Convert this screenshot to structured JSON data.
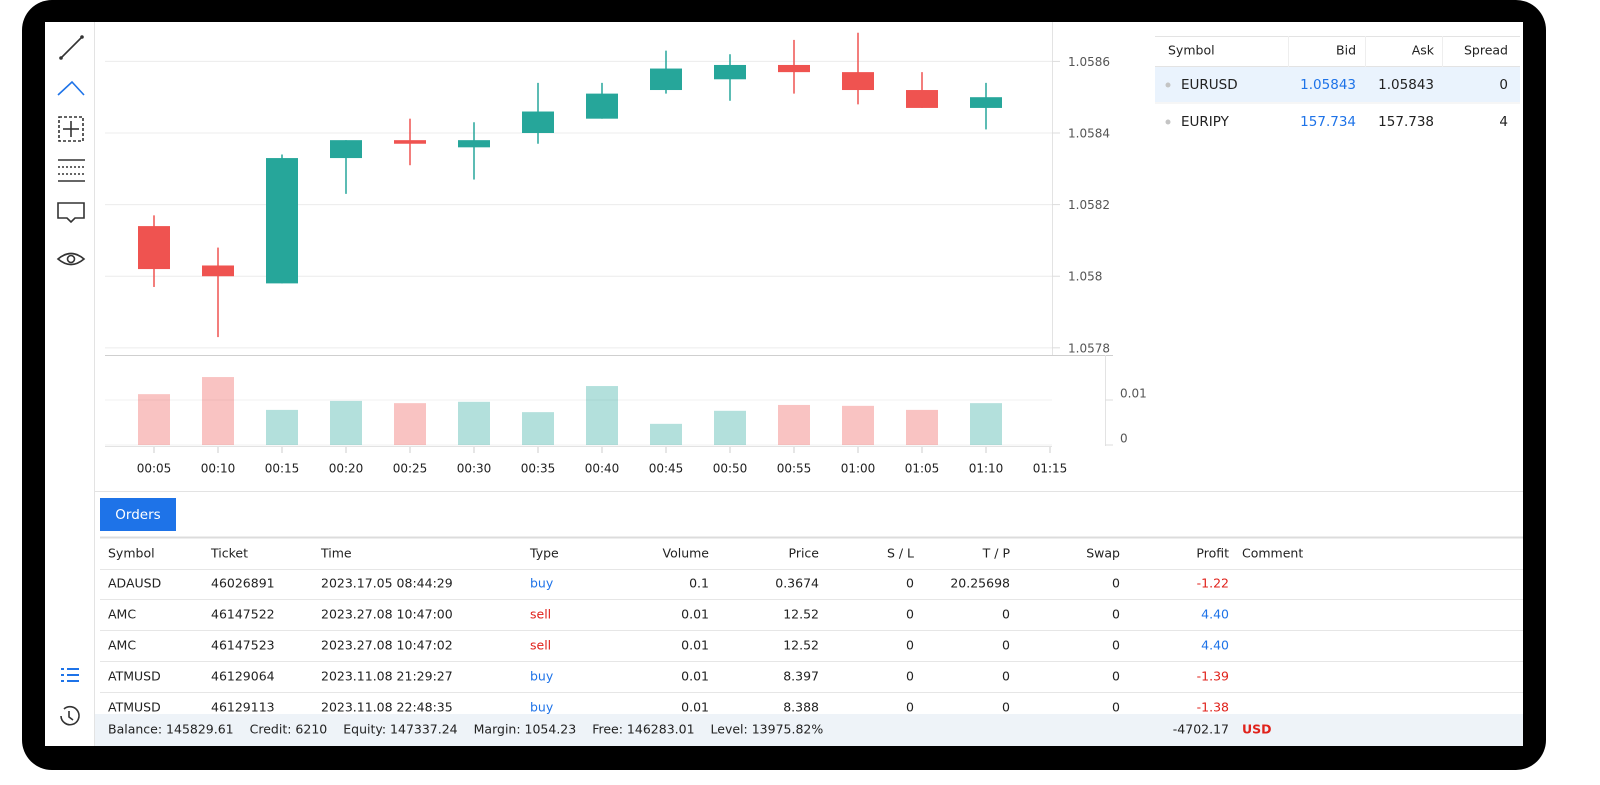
{
  "chart": {
    "type": "candlestick",
    "xticks": [
      "00:05",
      "00:10",
      "00:15",
      "00:20",
      "00:25",
      "00:30",
      "00:35",
      "00:40",
      "00:45",
      "00:50",
      "00:55",
      "01:00",
      "01:05",
      "01:10",
      "01:15"
    ],
    "open": [
      1.05814,
      1.05803,
      1.05798,
      1.05833,
      1.05838,
      1.05836,
      1.0584,
      1.05844,
      1.05852,
      1.05855,
      1.05859,
      1.05857,
      1.05852,
      1.05847
    ],
    "high": [
      1.05817,
      1.05808,
      1.05834,
      1.05838,
      1.05844,
      1.05843,
      1.05854,
      1.05854,
      1.05863,
      1.05862,
      1.05866,
      1.05868,
      1.05857,
      1.05854
    ],
    "low": [
      1.05797,
      1.05783,
      1.05798,
      1.05823,
      1.05831,
      1.05827,
      1.05837,
      1.05844,
      1.05851,
      1.05849,
      1.05851,
      1.05848,
      1.05847,
      1.05841
    ],
    "close": [
      1.05802,
      1.058,
      1.05833,
      1.05838,
      1.05837,
      1.05838,
      1.05846,
      1.05851,
      1.05858,
      1.05859,
      1.05857,
      1.05852,
      1.05847,
      1.0585
    ],
    "ylim": [
      1.05778,
      1.05871
    ],
    "yticks": [
      1.0578,
      1.058,
      1.0582,
      1.0584,
      1.0586
    ],
    "grid": true,
    "up_color": "#26a69a",
    "down_color": "#ef5350",
    "volume": {
      "values": [
        0.0113,
        0.0151,
        0.0078,
        0.0098,
        0.0093,
        0.0096,
        0.0073,
        0.0131,
        0.0047,
        0.0076,
        0.0089,
        0.0087,
        0.0078,
        0.0093
      ],
      "ylim": [
        0,
        0.02
      ],
      "yticks": [
        0,
        0.01
      ]
    }
  },
  "watchlist": {
    "columns": [
      "Symbol",
      "Bid",
      "Ask",
      "Spread"
    ],
    "rows": [
      [
        "EURUSD",
        "1.05843",
        "1.05843",
        "0"
      ],
      [
        "EURJPY",
        "157.734",
        "157.738",
        "4"
      ]
    ]
  },
  "orders": {
    "tab": "Orders",
    "columns": [
      "Symbol",
      "Ticket",
      "Time",
      "Type",
      "Volume",
      "Price",
      "S / L",
      "T / P",
      "Swap",
      "Profit",
      "Comment"
    ],
    "rows": [
      [
        "ADAUSD",
        "46026891",
        "2023.17.05 08:44:29",
        "buy",
        "0.1",
        "0.3674",
        "0",
        "20.25698",
        "0",
        "-1.22"
      ],
      [
        "AMC",
        "46147522",
        "2023.27.08 10:47:00",
        "sell",
        "0.01",
        "12.52",
        "0",
        "0",
        "0",
        "4.40"
      ],
      [
        "AMC",
        "46147523",
        "2023.27.08 10:47:02",
        "sell",
        "0.01",
        "12.52",
        "0",
        "0",
        "0",
        "4.40"
      ],
      [
        "ATMUSD",
        "46129064",
        "2023.11.08 21:29:27",
        "buy",
        "0.01",
        "8.397",
        "0",
        "0",
        "0",
        "-1.39"
      ],
      [
        "ATMUSD",
        "46129113",
        "2023.11.08 22:48:35",
        "buy",
        "0.01",
        "8.388",
        "0",
        "0",
        "0",
        "-1.38"
      ]
    ],
    "footer": {
      "items": [
        "Balance: 145829.61",
        "Credit: 6210",
        "Equity: 147337.24",
        "Margin: 1054.23",
        "Free: 146283.01",
        "Level: 13975.82%"
      ],
      "total": "-4702.17",
      "currency": "USD"
    }
  }
}
